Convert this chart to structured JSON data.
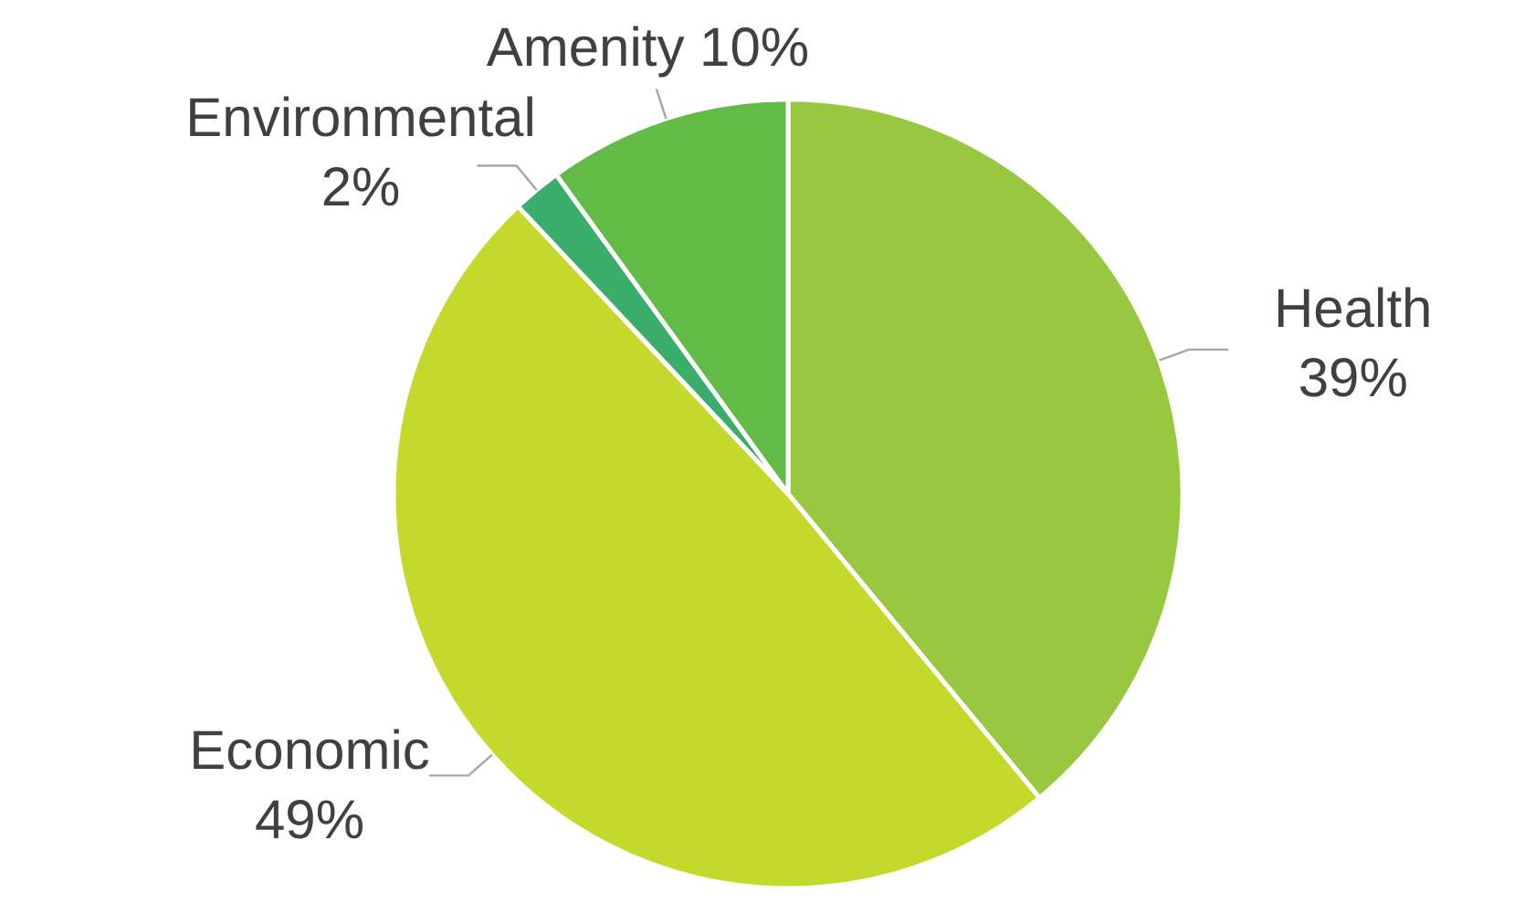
{
  "chart_data": {
    "type": "pie",
    "categories": [
      "Health",
      "Economic",
      "Environmental",
      "Amenity"
    ],
    "values": [
      39,
      49,
      2,
      10
    ],
    "colors": [
      "#97c83f",
      "#c5d92d",
      "#3aad6b",
      "#63bb47"
    ],
    "value_labels": [
      "39%",
      "49%",
      "2%",
      "10%"
    ]
  }
}
